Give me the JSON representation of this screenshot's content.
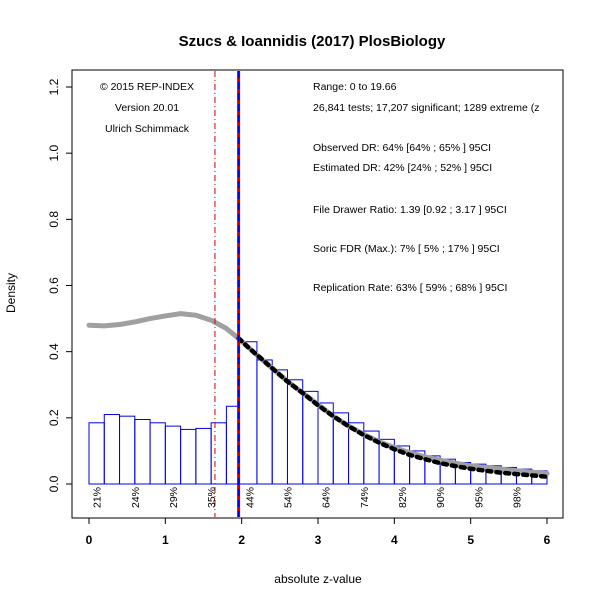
{
  "chart_data": {
    "type": "bar",
    "title": "Szucs & Ioannidis (2017) PlosBiology",
    "xlabel": "absolute z-value",
    "ylabel": "Density",
    "xlim": [
      0,
      6
    ],
    "ylim": [
      0,
      1.2
    ],
    "x_ticks": [
      "0",
      "1",
      "2",
      "3",
      "4",
      "5",
      "6"
    ],
    "y_ticks": [
      "0.0",
      "0.2",
      "0.4",
      "0.6",
      "0.8",
      "1.0",
      "1.2"
    ],
    "histogram": {
      "bin_width": 0.2,
      "bins": [
        {
          "x0": 0.0,
          "value": 0.185
        },
        {
          "x0": 0.2,
          "value": 0.21
        },
        {
          "x0": 0.4,
          "value": 0.205
        },
        {
          "x0": 0.6,
          "value": 0.195
        },
        {
          "x0": 0.8,
          "value": 0.185
        },
        {
          "x0": 1.0,
          "value": 0.175
        },
        {
          "x0": 1.2,
          "value": 0.165
        },
        {
          "x0": 1.4,
          "value": 0.168
        },
        {
          "x0": 1.6,
          "value": 0.185
        },
        {
          "x0": 1.8,
          "value": 0.235
        },
        {
          "x0": 1.96,
          "value": 0.43
        },
        {
          "x0": 2.2,
          "value": 0.375
        },
        {
          "x0": 2.4,
          "value": 0.345
        },
        {
          "x0": 2.6,
          "value": 0.315
        },
        {
          "x0": 2.8,
          "value": 0.28
        },
        {
          "x0": 3.0,
          "value": 0.245
        },
        {
          "x0": 3.2,
          "value": 0.215
        },
        {
          "x0": 3.4,
          "value": 0.185
        },
        {
          "x0": 3.6,
          "value": 0.16
        },
        {
          "x0": 3.8,
          "value": 0.135
        },
        {
          "x0": 4.0,
          "value": 0.115
        },
        {
          "x0": 4.2,
          "value": 0.1
        },
        {
          "x0": 4.4,
          "value": 0.085
        },
        {
          "x0": 4.6,
          "value": 0.075
        },
        {
          "x0": 4.8,
          "value": 0.065
        },
        {
          "x0": 5.0,
          "value": 0.06
        },
        {
          "x0": 5.2,
          "value": 0.055
        },
        {
          "x0": 5.4,
          "value": 0.05
        },
        {
          "x0": 5.6,
          "value": 0.045
        },
        {
          "x0": 5.8,
          "value": 0.04
        }
      ]
    },
    "gray_curve": {
      "x": [
        0.0,
        0.2,
        0.4,
        0.6,
        0.8,
        1.0,
        1.2,
        1.4,
        1.6,
        1.8,
        1.96,
        2.2,
        2.4,
        2.6,
        2.8,
        3.0,
        3.2,
        3.4,
        3.6,
        3.8,
        4.0,
        4.2,
        4.4,
        4.6,
        4.8,
        5.0,
        5.2,
        5.4,
        5.6,
        5.8,
        6.0
      ],
      "y": [
        0.48,
        0.478,
        0.482,
        0.49,
        0.5,
        0.508,
        0.515,
        0.51,
        0.495,
        0.47,
        0.44,
        0.39,
        0.35,
        0.31,
        0.275,
        0.24,
        0.205,
        0.175,
        0.15,
        0.128,
        0.11,
        0.095,
        0.082,
        0.072,
        0.063,
        0.055,
        0.05,
        0.045,
        0.04,
        0.036,
        0.032
      ]
    },
    "fit_dotted": {
      "x": [
        1.96,
        2.1,
        2.2,
        2.4,
        2.6,
        2.8,
        3.0,
        3.2,
        3.4,
        3.6,
        3.8,
        4.0,
        4.2,
        4.4,
        4.6,
        4.8,
        5.0,
        5.2,
        5.4,
        5.6,
        5.8,
        6.0
      ],
      "y": [
        0.44,
        0.41,
        0.39,
        0.35,
        0.31,
        0.275,
        0.238,
        0.205,
        0.175,
        0.148,
        0.125,
        0.105,
        0.088,
        0.075,
        0.063,
        0.054,
        0.046,
        0.04,
        0.034,
        0.03,
        0.026,
        0.022
      ]
    },
    "vlines": [
      {
        "x": 1.65,
        "color": "#cc0000",
        "style": "dashdot"
      },
      {
        "x": 1.96,
        "color": "#cc0000",
        "style": "solid"
      },
      {
        "x": 1.96,
        "color": "#0000cc",
        "style": "dashed"
      }
    ],
    "percent_labels": [
      {
        "x": 0.1,
        "text": "21%"
      },
      {
        "x": 0.6,
        "text": "24%"
      },
      {
        "x": 1.1,
        "text": "29%"
      },
      {
        "x": 1.6,
        "text": "35%"
      },
      {
        "x": 2.1,
        "text": "44%"
      },
      {
        "x": 2.6,
        "text": "54%"
      },
      {
        "x": 3.1,
        "text": "64%"
      },
      {
        "x": 3.6,
        "text": "74%"
      },
      {
        "x": 4.1,
        "text": "82%"
      },
      {
        "x": 4.6,
        "text": "90%"
      },
      {
        "x": 5.1,
        "text": "95%"
      },
      {
        "x": 5.6,
        "text": "98%"
      }
    ],
    "annotations_left": [
      "© 2015 REP-INDEX",
      "Version 20.01",
      "Ulrich Schimmack"
    ],
    "annotations_right": [
      "Range: 0 to 19.66",
      "26,841 tests; 17,207 significant; 1289 extreme (z",
      "Observed DR: 64% [64% ; 65% ] 95CI",
      "Estimated DR: 42% [24% ; 52% ] 95CI",
      "File Drawer Ratio: 1.39 [0.92 ; 3.17 ] 95CI",
      "Soric FDR (Max.): 7% [ 5% ; 17% ] 95CI",
      "Replication Rate: 63% [ 59% ; 68% ] 95CI"
    ],
    "colors": {
      "bar_stroke": "#0000ee",
      "gray_curve": "#a0a0a0",
      "red_line": "#cc0000",
      "blue_line": "#0000cc",
      "dotted_fit": "#000000"
    }
  }
}
